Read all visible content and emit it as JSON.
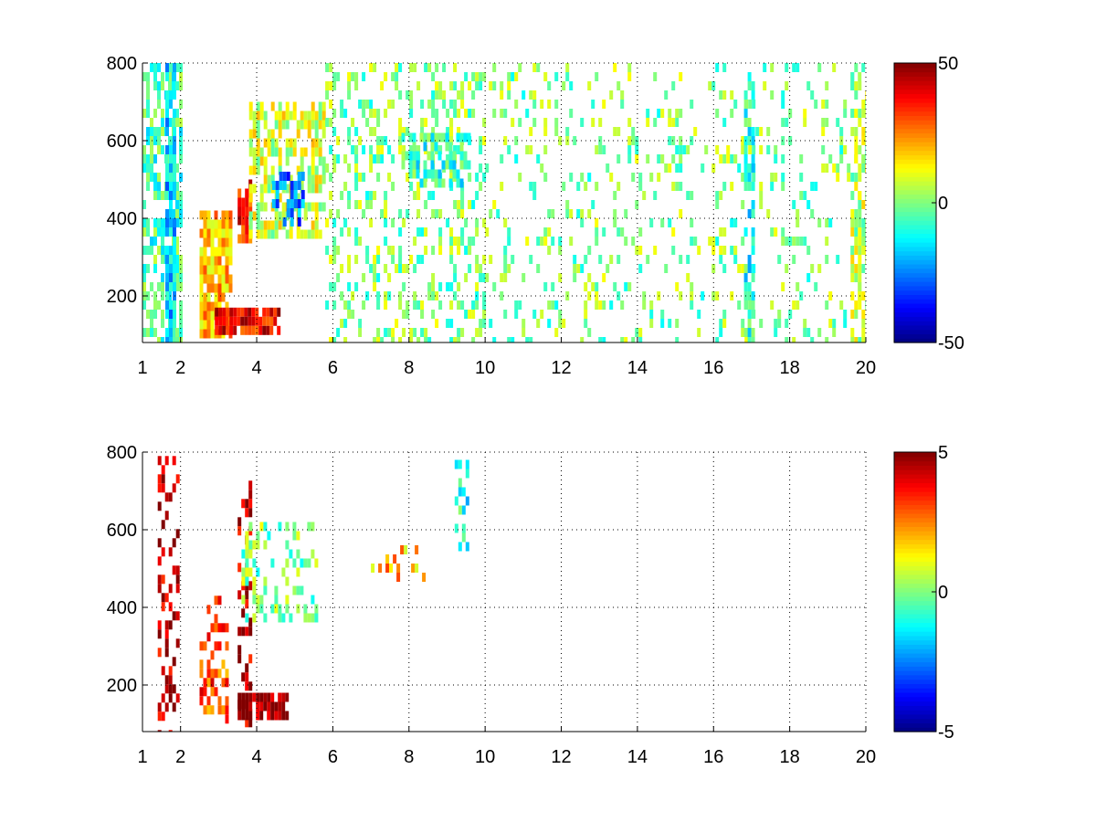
{
  "chart_data": [
    {
      "type": "heatmap",
      "title": "",
      "xlabel": "",
      "ylabel": "",
      "xlim": [
        1,
        20
      ],
      "ylim": [
        80,
        800
      ],
      "xticks": [
        1,
        2,
        4,
        6,
        8,
        10,
        12,
        14,
        16,
        18,
        20
      ],
      "yticks": [
        200,
        400,
        600,
        800
      ],
      "grid": true,
      "colormap": "jet",
      "colorbar": {
        "min": -50,
        "max": 50,
        "ticks": [
          50,
          0,
          -50
        ]
      },
      "regions": [
        {
          "x": [
            1.0,
            2.0
          ],
          "y": [
            80,
            800
          ],
          "value": -5,
          "density": 0.55
        },
        {
          "x": [
            1.6,
            1.8
          ],
          "y": [
            80,
            800
          ],
          "value": -18,
          "density": 0.8
        },
        {
          "x": [
            2.5,
            3.3
          ],
          "y": [
            100,
            420
          ],
          "value": 20,
          "density": 0.85
        },
        {
          "x": [
            3.5,
            3.8
          ],
          "y": [
            350,
            500
          ],
          "value": 35,
          "density": 0.8
        },
        {
          "x": [
            2.9,
            4.6
          ],
          "y": [
            120,
            170
          ],
          "value": 38,
          "density": 0.9
        },
        {
          "x": [
            3.8,
            5.8
          ],
          "y": [
            350,
            700
          ],
          "value": 8,
          "density": 0.6
        },
        {
          "x": [
            4.4,
            5.2
          ],
          "y": [
            400,
            520
          ],
          "value": -25,
          "density": 0.5
        },
        {
          "x": [
            5.8,
            10.0
          ],
          "y": [
            80,
            800
          ],
          "value": 0,
          "density": 0.3
        },
        {
          "x": [
            7.8,
            9.6
          ],
          "y": [
            480,
            620
          ],
          "value": -8,
          "density": 0.6
        },
        {
          "x": [
            10.0,
            20.0
          ],
          "y": [
            80,
            800
          ],
          "value": 0,
          "density": 0.15
        },
        {
          "x": [
            16.8,
            17.0
          ],
          "y": [
            80,
            800
          ],
          "value": -10,
          "density": 0.6
        },
        {
          "x": [
            19.6,
            20.0
          ],
          "y": [
            80,
            800
          ],
          "value": 5,
          "density": 0.6
        }
      ]
    },
    {
      "type": "heatmap",
      "title": "",
      "xlabel": "",
      "ylabel": "",
      "xlim": [
        1,
        20
      ],
      "ylim": [
        80,
        800
      ],
      "xticks": [
        1,
        2,
        4,
        6,
        8,
        10,
        12,
        14,
        16,
        18,
        20
      ],
      "yticks": [
        200,
        400,
        600,
        800
      ],
      "grid": true,
      "colormap": "jet",
      "colorbar": {
        "min": -5,
        "max": 5,
        "ticks": [
          5,
          0,
          -5
        ]
      },
      "regions": [
        {
          "x": [
            1.4,
            1.9
          ],
          "y": [
            80,
            790
          ],
          "value": 4.5,
          "density": 0.35
        },
        {
          "x": [
            2.5,
            3.2
          ],
          "y": [
            120,
            430
          ],
          "value": 3,
          "density": 0.4
        },
        {
          "x": [
            3.5,
            3.8
          ],
          "y": [
            80,
            750
          ],
          "value": 4.5,
          "density": 0.35
        },
        {
          "x": [
            3.5,
            4.8
          ],
          "y": [
            130,
            180
          ],
          "value": 5,
          "density": 0.85
        },
        {
          "x": [
            3.6,
            5.6
          ],
          "y": [
            380,
            620
          ],
          "value": 0,
          "density": 0.3
        },
        {
          "x": [
            7.0,
            8.4
          ],
          "y": [
            480,
            560
          ],
          "value": 2,
          "density": 0.2
        },
        {
          "x": [
            9.2,
            9.5
          ],
          "y": [
            560,
            780
          ],
          "value": -1,
          "density": 0.3
        }
      ]
    }
  ]
}
